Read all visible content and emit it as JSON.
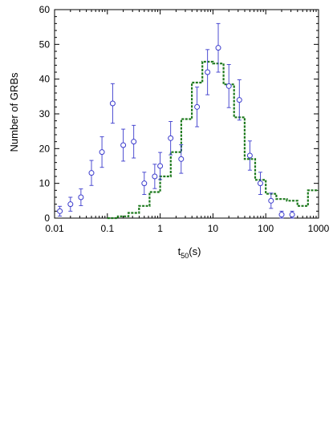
{
  "chart_data": {
    "type": "scatter",
    "title": "",
    "xlabel": "t",
    "xlabel_subscript": "50",
    "xlabel_unit": "(s)",
    "ylabel": "Number of GRBs",
    "xscale": "log",
    "xlim": [
      0.01,
      1000
    ],
    "ylim": [
      0,
      60
    ],
    "x_ticks": [
      0.01,
      0.1,
      1,
      10,
      100,
      1000
    ],
    "x_tick_labels": [
      "0.01",
      "0.1",
      "1",
      "10",
      "100",
      "1000"
    ],
    "y_ticks": [
      0,
      10,
      20,
      30,
      40,
      50,
      60
    ],
    "y_tick_labels": [
      "0",
      "10",
      "20",
      "30",
      "40",
      "50",
      "60"
    ],
    "grid": false,
    "legend": "none",
    "series": [
      {
        "kind": "points",
        "color": "#3a3acc",
        "points": [
          {
            "x": 0.0126,
            "y": 2,
            "err": 1.4
          },
          {
            "x": 0.02,
            "y": 4,
            "err": 2
          },
          {
            "x": 0.0316,
            "y": 6,
            "err": 2.4
          },
          {
            "x": 0.05,
            "y": 13,
            "err": 3.6
          },
          {
            "x": 0.079,
            "y": 19,
            "err": 4.4
          },
          {
            "x": 0.126,
            "y": 33,
            "err": 5.7
          },
          {
            "x": 0.2,
            "y": 21,
            "err": 4.6
          },
          {
            "x": 0.316,
            "y": 22,
            "err": 4.7
          },
          {
            "x": 0.5,
            "y": 10,
            "err": 3.2
          },
          {
            "x": 0.79,
            "y": 12,
            "err": 3.5
          },
          {
            "x": 1.0,
            "y": 15,
            "err": 3.9
          },
          {
            "x": 1.58,
            "y": 23,
            "err": 4.8
          },
          {
            "x": 2.5,
            "y": 17,
            "err": 4.1
          },
          {
            "x": 5.0,
            "y": 32,
            "err": 5.7
          },
          {
            "x": 7.9,
            "y": 42,
            "err": 6.5
          },
          {
            "x": 12.6,
            "y": 49,
            "err": 7
          },
          {
            "x": 20.0,
            "y": 38,
            "err": 6.2
          },
          {
            "x": 31.6,
            "y": 34,
            "err": 5.8
          },
          {
            "x": 50.0,
            "y": 18,
            "err": 4.2
          },
          {
            "x": 79.0,
            "y": 10,
            "err": 3.2
          },
          {
            "x": 126.0,
            "y": 5,
            "err": 2.2
          },
          {
            "x": 200.0,
            "y": 1,
            "err": 1
          },
          {
            "x": 316.0,
            "y": 1,
            "err": 1
          }
        ]
      },
      {
        "kind": "step",
        "color": "#1e7a1e",
        "x_edges": [
          0.1,
          0.158,
          0.251,
          0.398,
          0.631,
          1.0,
          1.585,
          2.512,
          3.981,
          6.31,
          10.0,
          15.85,
          25.12,
          39.81,
          63.1,
          100.0,
          158.5,
          251.2,
          398.1,
          631.0,
          1000.0
        ],
        "values": [
          0,
          0.5,
          1.5,
          3.5,
          7.5,
          12,
          19,
          28.5,
          39,
          45,
          44.5,
          38.5,
          29,
          17,
          11,
          7,
          5.5,
          5,
          3.5,
          8
        ]
      }
    ]
  }
}
